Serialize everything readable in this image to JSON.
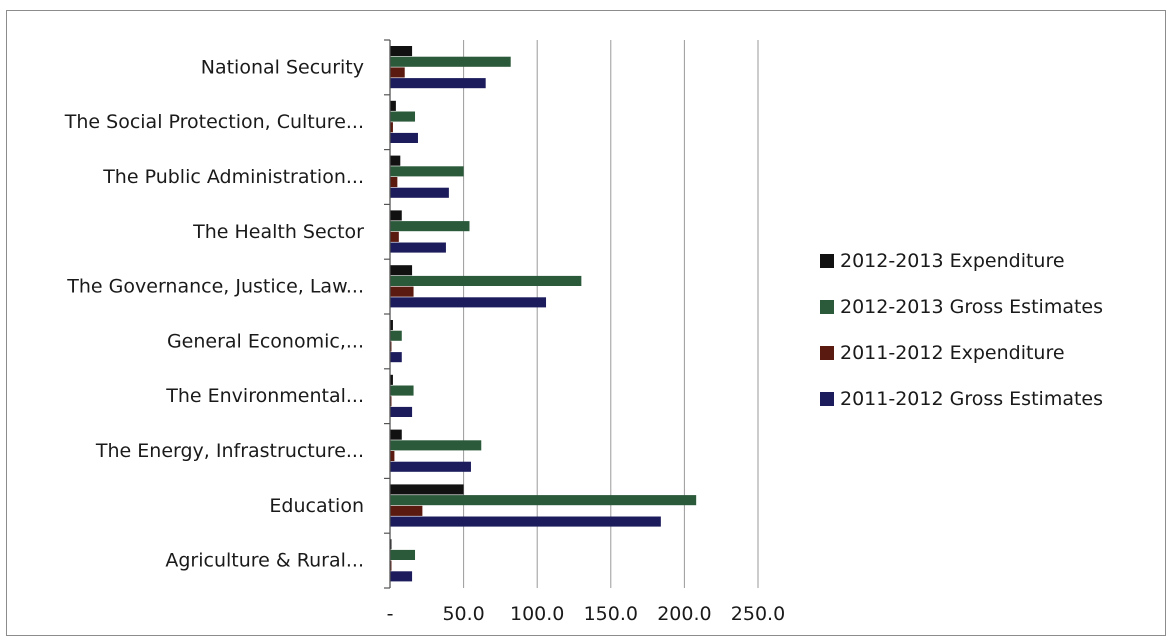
{
  "chart_data": {
    "type": "bar",
    "orientation": "horizontal",
    "categories": [
      "National Security",
      "The Social Protection, Culture...",
      "The Public Administration...",
      "The Health Sector",
      "The Governance, Justice, Law...",
      "General Economic,...",
      "The Environmental...",
      "The Energy, Infrastructure...",
      "Education",
      "Agriculture & Rural..."
    ],
    "series": [
      {
        "name": "2012-2013 Expenditure",
        "color": "#111111",
        "values": [
          15,
          4,
          7,
          8,
          15,
          2,
          2,
          8,
          50,
          1
        ]
      },
      {
        "name": "2012-2013 Gross Estimates",
        "color": "#2b5a3a",
        "values": [
          82,
          17,
          50,
          54,
          130,
          8,
          16,
          62,
          208,
          17
        ]
      },
      {
        "name": "2011-2012 Expenditure",
        "color": "#5a1a10",
        "values": [
          10,
          2,
          5,
          6,
          16,
          1,
          1,
          3,
          22,
          1
        ]
      },
      {
        "name": "2011-2012 Gross Estimates",
        "color": "#1c1c5c",
        "values": [
          65,
          19,
          40,
          38,
          106,
          8,
          15,
          55,
          184,
          15
        ]
      }
    ],
    "xticks": [
      "-",
      "50.0",
      "100.0",
      "150.0",
      "200.0",
      "250.0"
    ],
    "xlim": [
      0,
      250
    ],
    "grid": true,
    "legend_position": "right",
    "title": "",
    "xlabel": "",
    "ylabel": ""
  }
}
